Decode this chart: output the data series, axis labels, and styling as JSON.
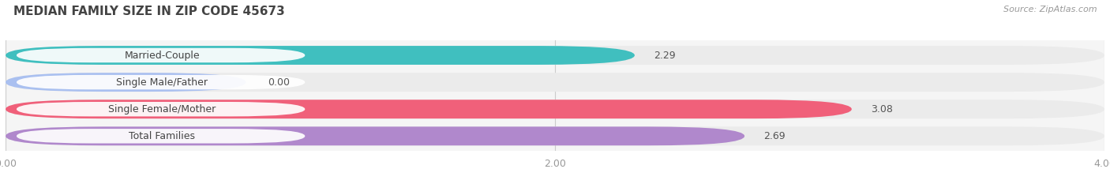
{
  "title": "MEDIAN FAMILY SIZE IN ZIP CODE 45673",
  "source": "Source: ZipAtlas.com",
  "categories": [
    "Married-Couple",
    "Single Male/Father",
    "Single Female/Mother",
    "Total Families"
  ],
  "values": [
    2.29,
    0.0,
    3.08,
    2.69
  ],
  "bar_colors": [
    "#40bfbf",
    "#aac0f0",
    "#f0607a",
    "#b088cc"
  ],
  "bar_bg_color": "#ebebeb",
  "xlim": [
    0,
    4.0
  ],
  "xticks": [
    0.0,
    2.0,
    4.0
  ],
  "xtick_labels": [
    "0.00",
    "2.00",
    "4.00"
  ],
  "background_color": "#ffffff",
  "plot_bg_color": "#f5f5f5",
  "bar_height": 0.7,
  "title_fontsize": 11,
  "label_fontsize": 9,
  "value_fontsize": 9,
  "source_fontsize": 8
}
